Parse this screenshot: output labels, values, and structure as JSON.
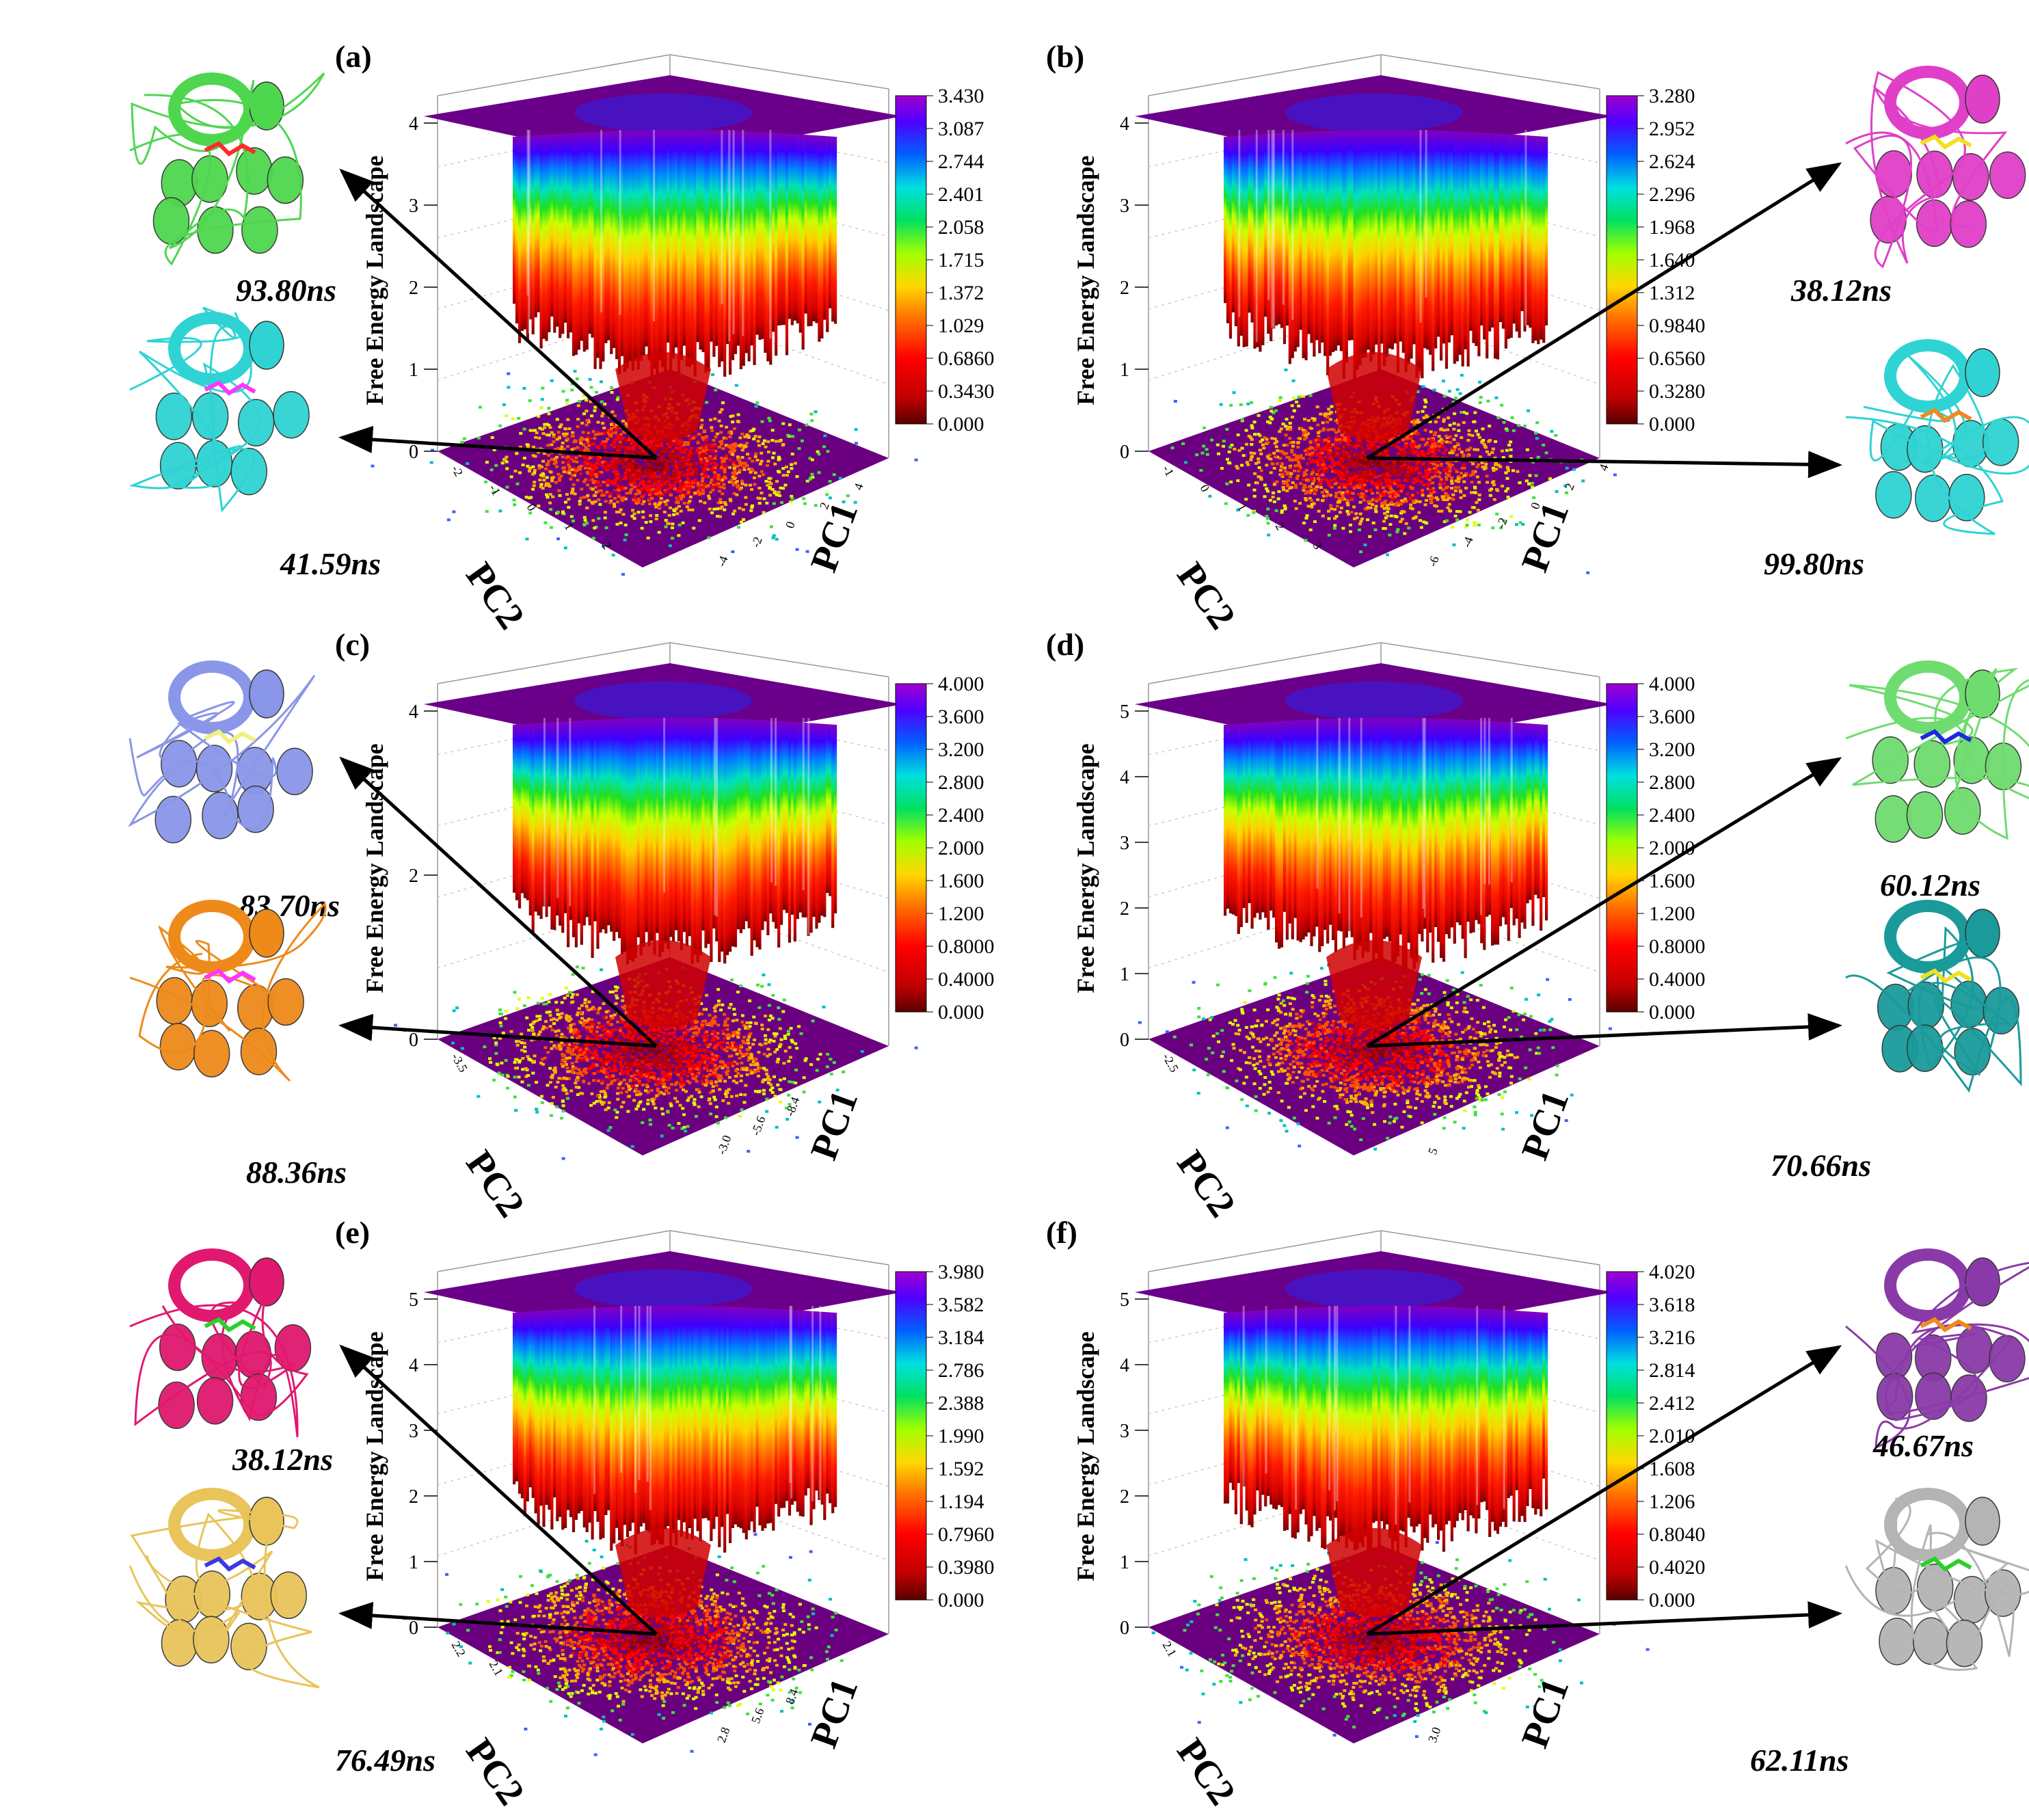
{
  "figure": {
    "type": "3d-surface",
    "description": "Free energy landscapes (PC1 vs PC2) for six systems with representative structures"
  },
  "chart_data": [
    {
      "type": "heatmap",
      "panel": "(a)",
      "zlabel": "Free Energy Landscape",
      "xlabel": "PC1",
      "ylabel": "PC2",
      "zlim": [
        0,
        4.3
      ],
      "z_ticks": [
        "0",
        "1",
        "2",
        "3",
        "4"
      ],
      "pc1_ticks": [
        "-4",
        "-2",
        "0",
        "2",
        "4"
      ],
      "pc2_ticks": [
        "-2",
        "-1",
        "0",
        "1",
        "2"
      ],
      "colorbar": [
        "3.430",
        "3.087",
        "2.744",
        "2.401",
        "2.058",
        "1.715",
        "1.372",
        "1.029",
        "0.6860",
        "0.3430",
        "0.000"
      ],
      "snapshots": [
        {
          "time": "93.80ns",
          "protein_color": "#4fd64f",
          "ligand_color": "#ff2a2a"
        },
        {
          "time": "41.59ns",
          "protein_color": "#2fd3d3",
          "ligand_color": "#ff36ff"
        }
      ]
    },
    {
      "type": "heatmap",
      "panel": "(b)",
      "zlabel": "Free Energy Landscape",
      "xlabel": "PC1",
      "ylabel": "PC2",
      "zlim": [
        0,
        4.3
      ],
      "z_ticks": [
        "0",
        "1",
        "2",
        "3",
        "4"
      ],
      "pc1_ticks": [
        "-6",
        "-4",
        "-2",
        "0",
        "2",
        "4"
      ],
      "pc2_ticks": [
        "-1",
        "0",
        "1",
        "2",
        "3"
      ],
      "colorbar": [
        "3.280",
        "2.952",
        "2.624",
        "2.296",
        "1.968",
        "1.640",
        "1.312",
        "0.9840",
        "0.6560",
        "0.3280",
        "0.000"
      ],
      "snapshots": [
        {
          "time": "38.12ns",
          "protein_color": "#e040c8",
          "ligand_color": "#f0e020"
        },
        {
          "time": "99.80ns",
          "protein_color": "#2fd3d3",
          "ligand_color": "#f08a20"
        }
      ]
    },
    {
      "type": "heatmap",
      "panel": "(c)",
      "zlabel": "Free Energy Landscape",
      "xlabel": "PC1",
      "ylabel": "PC2",
      "zlim": [
        0,
        5
      ],
      "z_ticks": [
        "0",
        "2",
        "4"
      ],
      "pc1_ticks": [
        "-3.0",
        "-5.6",
        "-8.4"
      ],
      "pc2_ticks": [
        "-3.5"
      ],
      "colorbar": [
        "4.000",
        "3.600",
        "3.200",
        "2.800",
        "2.400",
        "2.000",
        "1.600",
        "1.200",
        "0.8000",
        "0.4000",
        "0.000"
      ],
      "snapshots": [
        {
          "time": "83.70ns",
          "protein_color": "#8a96e8",
          "ligand_color": "#f0f080"
        },
        {
          "time": "88.36ns",
          "protein_color": "#ee8a1a",
          "ligand_color": "#ff36ff"
        }
      ]
    },
    {
      "type": "heatmap",
      "panel": "(d)",
      "zlabel": "Free Energy Landscape",
      "xlabel": "PC1",
      "ylabel": "PC2",
      "zlim": [
        0,
        5
      ],
      "z_ticks": [
        "0",
        "1",
        "2",
        "3",
        "4",
        "5"
      ],
      "pc1_ticks": [
        "5"
      ],
      "pc2_ticks": [
        "-2.5"
      ],
      "colorbar": [
        "4.000",
        "3.600",
        "3.200",
        "2.800",
        "2.400",
        "2.000",
        "1.600",
        "1.200",
        "0.8000",
        "0.4000",
        "0.000"
      ],
      "snapshots": [
        {
          "time": "60.12ns",
          "protein_color": "#6fdc6f",
          "ligand_color": "#1a2ae0"
        },
        {
          "time": "70.66ns",
          "protein_color": "#1a9a9a",
          "ligand_color": "#f0e020"
        }
      ]
    },
    {
      "type": "heatmap",
      "panel": "(e)",
      "zlabel": "Free Energy Landscape",
      "xlabel": "PC1",
      "ylabel": "PC2",
      "zlim": [
        0,
        5
      ],
      "z_ticks": [
        "0",
        "1",
        "2",
        "3",
        "4",
        "5"
      ],
      "pc1_ticks": [
        "2.8",
        "5.6",
        "8.4"
      ],
      "pc2_ticks": [
        "2.2",
        "2.1"
      ],
      "colorbar": [
        "3.980",
        "3.582",
        "3.184",
        "2.786",
        "2.388",
        "1.990",
        "1.592",
        "1.194",
        "0.7960",
        "0.3980",
        "0.000"
      ],
      "snapshots": [
        {
          "time": "38.12ns",
          "protein_color": "#e0186e",
          "ligand_color": "#2ad02a"
        },
        {
          "time": "76.49ns",
          "protein_color": "#e8c45a",
          "ligand_color": "#3a3ae0"
        }
      ]
    },
    {
      "type": "heatmap",
      "panel": "(f)",
      "zlabel": "Free Energy Landscape",
      "xlabel": "PC1",
      "ylabel": "PC2",
      "zlim": [
        0,
        5
      ],
      "z_ticks": [
        "0",
        "1",
        "2",
        "3",
        "4",
        "5"
      ],
      "pc1_ticks": [
        "3.0"
      ],
      "pc2_ticks": [
        "2.1"
      ],
      "colorbar": [
        "4.020",
        "3.618",
        "3.216",
        "2.814",
        "2.412",
        "2.010",
        "1.608",
        "1.206",
        "0.8040",
        "0.4020",
        "0.000"
      ],
      "snapshots": [
        {
          "time": "46.67ns",
          "protein_color": "#8a3aa8",
          "ligand_color": "#f08a20"
        },
        {
          "time": "62.11ns",
          "protein_color": "#b4b4b4",
          "ligand_color": "#2ad02a"
        }
      ]
    }
  ]
}
